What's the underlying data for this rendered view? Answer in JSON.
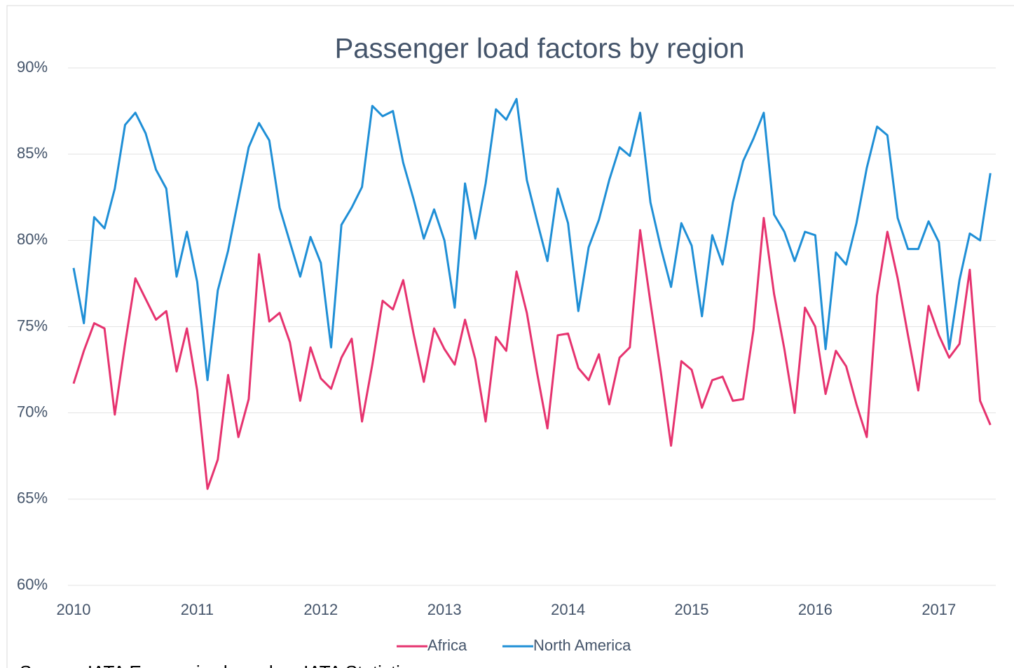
{
  "chart_data": {
    "type": "line",
    "title": "Passenger load factors by region",
    "source": "Source: IATA Economics based on IATA Statistics",
    "categories": [
      "2010",
      null,
      null,
      null,
      null,
      null,
      null,
      null,
      null,
      null,
      null,
      null,
      "2011",
      null,
      null,
      null,
      null,
      null,
      null,
      null,
      null,
      null,
      null,
      null,
      "2012",
      null,
      null,
      null,
      null,
      null,
      null,
      null,
      null,
      null,
      null,
      null,
      "2013",
      null,
      null,
      null,
      null,
      null,
      null,
      null,
      null,
      null,
      null,
      null,
      "2014",
      null,
      null,
      null,
      null,
      null,
      null,
      null,
      null,
      null,
      null,
      null,
      "2015",
      null,
      null,
      null,
      null,
      null,
      null,
      null,
      null,
      null,
      null,
      null,
      "2016",
      null,
      null,
      null,
      null,
      null,
      null,
      null,
      null,
      null,
      null,
      null,
      "2017",
      null,
      null,
      null,
      null,
      null
    ],
    "series": [
      {
        "name": "Africa",
        "color": "#e6336f",
        "values": [
          71.7,
          73.6,
          75.2,
          74.9,
          69.9,
          74.0,
          77.8,
          76.6,
          75.4,
          75.9,
          72.4,
          74.9,
          71.3,
          65.6,
          67.3,
          72.2,
          68.6,
          70.8,
          79.2,
          75.3,
          75.8,
          74.1,
          70.7,
          73.8,
          72.0,
          71.4,
          73.2,
          74.3,
          69.5,
          72.8,
          76.5,
          76.0,
          77.7,
          74.6,
          71.8,
          74.9,
          73.7,
          72.8,
          75.4,
          73.1,
          69.5,
          74.4,
          73.6,
          78.2,
          75.8,
          72.3,
          69.1,
          74.5,
          74.6,
          72.6,
          71.9,
          73.4,
          70.5,
          73.2,
          73.8,
          80.6,
          76.4,
          72.4,
          68.1,
          73.0,
          72.5,
          70.3,
          71.9,
          72.1,
          70.7,
          70.8,
          74.8,
          81.3,
          76.9,
          73.7,
          70.0,
          76.1,
          75.0,
          71.1,
          73.6,
          72.7,
          70.5,
          68.6,
          76.8,
          80.5,
          77.8,
          74.5,
          71.3,
          76.2,
          74.5,
          73.2,
          74.0,
          78.3,
          70.7,
          69.3
        ]
      },
      {
        "name": "North America",
        "color": "#1f8fd6",
        "values": [
          78.4,
          75.2,
          81.35,
          80.7,
          83.0,
          86.7,
          87.4,
          86.2,
          84.1,
          83.0,
          77.9,
          80.5,
          77.6,
          71.9,
          77.1,
          79.4,
          82.4,
          85.4,
          86.8,
          85.8,
          81.9,
          79.9,
          77.9,
          80.2,
          78.7,
          73.8,
          80.9,
          81.9,
          83.1,
          87.8,
          87.2,
          87.5,
          84.5,
          82.4,
          80.1,
          81.8,
          80.0,
          76.1,
          83.3,
          80.1,
          83.3,
          87.6,
          87.0,
          88.2,
          83.5,
          81.1,
          78.8,
          83.0,
          81.0,
          75.9,
          79.6,
          81.2,
          83.5,
          85.4,
          84.9,
          87.4,
          82.2,
          79.6,
          77.3,
          81.0,
          79.7,
          75.6,
          80.3,
          78.6,
          82.2,
          84.6,
          85.9,
          87.4,
          81.5,
          80.5,
          78.8,
          80.5,
          80.3,
          73.7,
          79.3,
          78.6,
          81.0,
          84.2,
          86.6,
          86.1,
          81.3,
          79.5,
          79.5,
          81.1,
          79.9,
          73.7,
          77.7,
          80.4,
          80.0,
          83.9
        ]
      }
    ],
    "ylim": [
      60,
      90
    ],
    "yticks": [
      {
        "value": 60,
        "label": "60%"
      },
      {
        "value": 65,
        "label": "65%"
      },
      {
        "value": 70,
        "label": "70%"
      },
      {
        "value": 75,
        "label": "75%"
      },
      {
        "value": 80,
        "label": "80%"
      },
      {
        "value": 85,
        "label": "85%"
      },
      {
        "value": 90,
        "label": "90%"
      }
    ],
    "grid": true,
    "legend": "bottom"
  }
}
